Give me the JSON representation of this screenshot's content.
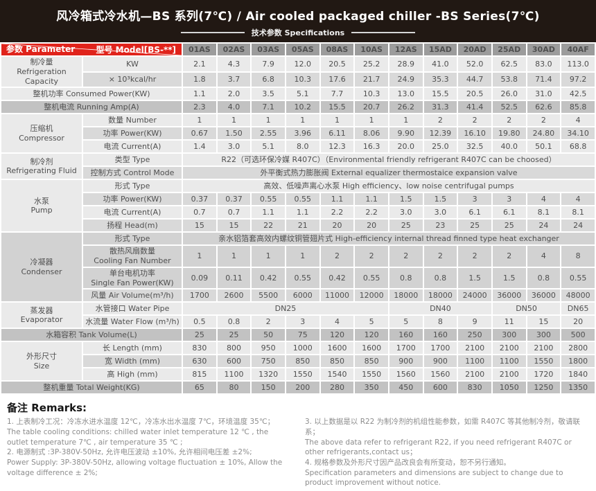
{
  "header": {
    "title": "风冷箱式冷水机—BS 系列(7℃) / Air cooled packaged chiller -BS Series(7℃)",
    "subtitle": "技术参数 Specifications"
  },
  "colors": {
    "banner_bg": "#211813",
    "accent_red": "#e0231b",
    "model_header_bg": "#9c9c9c",
    "dark_band": "#c2c2c2"
  },
  "table": {
    "corner": {
      "param": "参数 Parameter",
      "model": "型号 Model[BS-**]"
    },
    "models": [
      "01AS",
      "02AS",
      "03AS",
      "05AS",
      "08AS",
      "10AS",
      "12AS",
      "15AD",
      "20AD",
      "25AD",
      "30AD",
      "40AF"
    ],
    "rows": [
      {
        "group": {
          "zh": "制冷量",
          "en": "Refrigeration Capacity",
          "span": 2,
          "shade": "a"
        },
        "label": "KW",
        "shade": "a",
        "values": [
          "2.1",
          "4.3",
          "7.9",
          "12.0",
          "20.5",
          "25.2",
          "28.9",
          "41.0",
          "52.0",
          "62.5",
          "83.0",
          "113.0"
        ]
      },
      {
        "label": "× 10³kcal/hr",
        "shade": "b",
        "values": [
          "1.8",
          "3.7",
          "6.8",
          "10.3",
          "17.6",
          "21.7",
          "24.9",
          "35.3",
          "44.7",
          "53.8",
          "71.4",
          "97.2"
        ]
      },
      {
        "wide": "整机功率 Consumed Power(KW)",
        "shade": "a",
        "values": [
          "1.1",
          "2.0",
          "3.5",
          "5.1",
          "7.7",
          "10.3",
          "13.0",
          "15.5",
          "20.5",
          "26.0",
          "31.0",
          "42.5"
        ]
      },
      {
        "wide": "整机电流 Running Amp(A)",
        "shade": "d",
        "values": [
          "2.3",
          "4.0",
          "7.1",
          "10.2",
          "15.5",
          "20.7",
          "26.2",
          "31.3",
          "41.4",
          "52.5",
          "62.6",
          "85.8"
        ]
      },
      {
        "group": {
          "zh": "压缩机",
          "en": "Compressor",
          "span": 3,
          "shade": "a"
        },
        "label": "数量 Number",
        "shade": "a",
        "values": [
          "1",
          "1",
          "1",
          "1",
          "1",
          "1",
          "1",
          "2",
          "2",
          "2",
          "2",
          "4"
        ]
      },
      {
        "label": "功率 Power(KW)",
        "shade": "b",
        "values": [
          "0.67",
          "1.50",
          "2.55",
          "3.96",
          "6.11",
          "8.06",
          "9.90",
          "12.39",
          "16.10",
          "19.80",
          "24.80",
          "34.10"
        ]
      },
      {
        "label": "电流 Current(A)",
        "shade": "a",
        "values": [
          "1.4",
          "3.0",
          "5.1",
          "8.0",
          "12.3",
          "16.3",
          "20.0",
          "25.0",
          "32.5",
          "40.0",
          "50.1",
          "68.8"
        ]
      },
      {
        "group": {
          "zh": "制冷剂",
          "en": "Refrigerating Fluid",
          "span": 2,
          "shade": "a"
        },
        "label": "类型 Type",
        "shade": "a",
        "span_text": "R22（可选环保冷媒 R407C）（Environmental friendly refrigerant R407C can be choosed）"
      },
      {
        "label": "控制方式 Control Mode",
        "shade": "b",
        "span_text": "外平衡式热力膨胀阀 External equalizer thermostaice expansion valve"
      },
      {
        "group": {
          "zh": "水泵",
          "en": "Pump",
          "span": 4,
          "shade": "a"
        },
        "label": "形式 Type",
        "shade": "a",
        "span_text": "高效、低噪声离心水泵 High efficiency、low noise centrifugal pumps"
      },
      {
        "label": "功率 Power(KW)",
        "shade": "b",
        "values": [
          "0.37",
          "0.37",
          "0.55",
          "0.55",
          "1.1",
          "1.1",
          "1.5",
          "1.5",
          "3",
          "3",
          "4",
          "4"
        ]
      },
      {
        "label": "电流 Current(A)",
        "shade": "a",
        "values": [
          "0.7",
          "0.7",
          "1.1",
          "1.1",
          "2.2",
          "2.2",
          "3.0",
          "3.0",
          "6.1",
          "6.1",
          "8.1",
          "8.1"
        ]
      },
      {
        "label": "扬程 Head(m)",
        "shade": "b",
        "values": [
          "15",
          "15",
          "22",
          "21",
          "20",
          "20",
          "25",
          "23",
          "25",
          "25",
          "24",
          "24"
        ]
      },
      {
        "group": {
          "zh": "冷凝器",
          "en": "Condenser",
          "span": 4,
          "shade": "c"
        },
        "label": "形式 Type",
        "shade": "c",
        "span_text": "亲水铝箔套高效内螺纹铜管翅片式 High-efficiency internal thread finned type heat exchanger"
      },
      {
        "label": {
          "zh": "散热风扇数量",
          "en": "Cooling Fan Number"
        },
        "shade": "c",
        "values": [
          "1",
          "1",
          "1",
          "1",
          "2",
          "2",
          "2",
          "2",
          "2",
          "2",
          "4",
          "8"
        ]
      },
      {
        "label": {
          "zh": "单台电机功率",
          "en": "Single Fan Power(KW)"
        },
        "shade": "c",
        "values": [
          "0.09",
          "0.11",
          "0.42",
          "0.55",
          "0.42",
          "0.55",
          "0.8",
          "0.8",
          "1.5",
          "1.5",
          "0.8",
          "0.55"
        ]
      },
      {
        "label": "风量 Air Volume(m³/h)",
        "shade": "b",
        "values": [
          "1700",
          "2600",
          "5500",
          "6000",
          "11000",
          "12000",
          "18000",
          "18000",
          "24000",
          "36000",
          "36000",
          "48000"
        ]
      },
      {
        "group": {
          "zh": "蒸发器",
          "en": "Evaporator",
          "span": 2,
          "shade": "a"
        },
        "label": "水管接口 Water Pipe",
        "shade": "a",
        "cells": [
          {
            "t": "DN25",
            "s": 6
          },
          {
            "t": "DN40",
            "s": 3
          },
          {
            "t": "DN50",
            "s": 2
          },
          {
            "t": "DN65",
            "s": 1
          }
        ]
      },
      {
        "label": "水流量 Water Flow (m³/h)",
        "shade": "a",
        "values": [
          "0.5",
          "0.8",
          "2",
          "3",
          "4",
          "5",
          "5",
          "8",
          "9",
          "11",
          "15",
          "20"
        ]
      },
      {
        "wide": "水箱容积 Tank Volume(L)",
        "shade": "d",
        "values": [
          "25",
          "25",
          "50",
          "75",
          "120",
          "120",
          "160",
          "160",
          "250",
          "300",
          "300",
          "500"
        ]
      },
      {
        "group": {
          "zh": "外形尺寸",
          "en": "Size",
          "span": 3,
          "shade": "a"
        },
        "label": "长 Length (mm)",
        "shade": "a",
        "values": [
          "830",
          "800",
          "950",
          "1000",
          "1600",
          "1600",
          "1700",
          "1700",
          "2100",
          "2100",
          "2100",
          "2800"
        ]
      },
      {
        "label": "宽 Width (mm)",
        "shade": "b",
        "values": [
          "630",
          "600",
          "750",
          "850",
          "850",
          "850",
          "900",
          "900",
          "1100",
          "1100",
          "1550",
          "1800"
        ]
      },
      {
        "label": "高 High (mm)",
        "shade": "a",
        "values": [
          "815",
          "1100",
          "1320",
          "1550",
          "1540",
          "1550",
          "1560",
          "1560",
          "2100",
          "2100",
          "1720",
          "1840"
        ]
      },
      {
        "wide": "整机重量 Total Weight(KG)",
        "shade": "d",
        "values": [
          "65",
          "80",
          "150",
          "200",
          "280",
          "350",
          "450",
          "600",
          "830",
          "1050",
          "1250",
          "1350"
        ]
      }
    ]
  },
  "remarks": {
    "heading": "备注 Remarks:",
    "left": [
      "1. 上表制冷工况：冷冻水进水温度 12℃，冷冻水出水温度 7℃，环境温度 35℃；",
      "The table cooling conditions: chilled water inlet temperature 12 ℃ , the outlet temperature 7℃ , air temperature 35 ℃ ;",
      "2. 电源制式 :3P-380V-50Hz, 允许电压波动 ±10%, 允许相间电压差 ±2%;",
      "Power Supply: 3P-380V-50Hz, allowing voltage fluctuation ± 10%, Allow the voltage difference ± 2%;"
    ],
    "right": [
      "3. 以上数据是以 R22 为制冷剂的机组性能参数，如需 R407C 等其他制冷剂，敬请联系；",
      "The above data refer to refrigerant R22, if you need refrigerant R407C or other refrigerants,contact us；",
      "4. 规格参数及外形尺寸因产品改良会有所变动，恕不另行通知。",
      "Specification parameters and dimensions are subject to change due to product improvement without notice."
    ]
  }
}
